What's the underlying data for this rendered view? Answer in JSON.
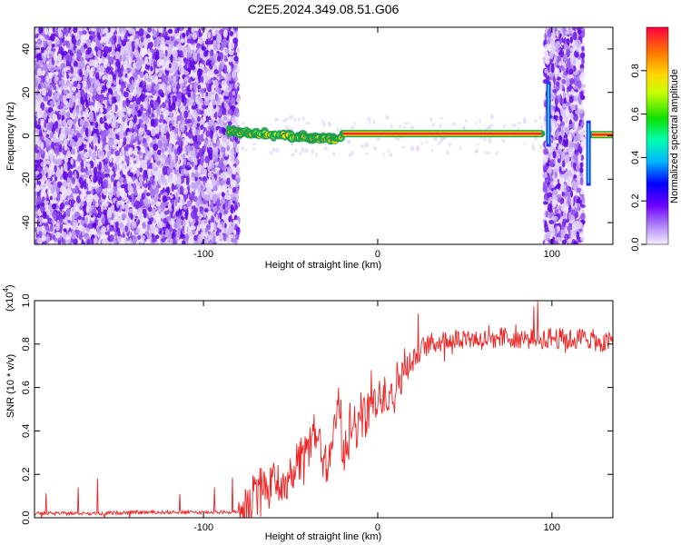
{
  "title": "C2E5.2024.349.08.51.G06",
  "chart_data": [
    {
      "type": "heatmap",
      "xlabel": "Height of straight line (km)",
      "ylabel": "Frequency (Hz)",
      "xlim": [
        -197,
        135
      ],
      "ylim": [
        -50,
        50
      ],
      "xticks": [
        -100,
        0,
        100
      ],
      "yticks": [
        -40,
        -20,
        0,
        20,
        40
      ],
      "colorbar": {
        "label": "Normalized spectral amplitude",
        "range": [
          0,
          1
        ],
        "ticks": [
          "0.0",
          "0.2",
          "0.4",
          "0.6",
          "0.8"
        ]
      },
      "noise_regions_km": [
        [
          -197,
          -80
        ],
        [
          96,
          118
        ]
      ],
      "signal_line_freq_hz": 1,
      "signal_segments": [
        {
          "x": [
            -85,
            -20
          ],
          "freq_hz": [
            2,
            -2
          ],
          "note": "fragmented"
        },
        {
          "x": [
            -20,
            94
          ],
          "freq_hz": [
            1,
            1
          ],
          "note": "continuous"
        },
        {
          "x": [
            123,
            135
          ],
          "freq_hz": [
            0.5,
            0.5
          ],
          "note": "continuous"
        }
      ],
      "vertical_streaks": [
        {
          "x": 98,
          "freq_range": [
            -5,
            25
          ]
        },
        {
          "x": 121,
          "freq_range": [
            -23,
            7
          ]
        }
      ],
      "grid": false
    },
    {
      "type": "line",
      "xlabel": "Height of straight line (km)",
      "ylabel": "SNR (10 * v/v)",
      "y_scale_label": "(x10",
      "y_scale_exponent": "4",
      "xlim": [
        -197,
        135
      ],
      "ylim": [
        0,
        1.0
      ],
      "xticks": [
        -100,
        0,
        100
      ],
      "yticks": [
        "0.0",
        "0.2",
        "0.4",
        "0.6",
        "0.8",
        "1.0"
      ],
      "series": [
        {
          "color": "#ee2222",
          "x": [
            -197,
            -180,
            -160,
            -140,
            -120,
            -100,
            -90,
            -80,
            -75,
            -70,
            -65,
            -60,
            -55,
            -50,
            -45,
            -40,
            -35,
            -30,
            -25,
            -22,
            -20,
            -15,
            -10,
            -5,
            0,
            5,
            10,
            15,
            20,
            25,
            30,
            40,
            50,
            60,
            70,
            80,
            90,
            100,
            110,
            120,
            130,
            135
          ],
          "values": [
            0.02,
            0.02,
            0.02,
            0.025,
            0.025,
            0.025,
            0.025,
            0.03,
            0.05,
            0.1,
            0.15,
            0.18,
            0.12,
            0.16,
            0.25,
            0.3,
            0.42,
            0.25,
            0.38,
            0.55,
            0.3,
            0.4,
            0.45,
            0.5,
            0.55,
            0.58,
            0.6,
            0.68,
            0.72,
            0.78,
            0.8,
            0.82,
            0.83,
            0.82,
            0.83,
            0.83,
            0.82,
            0.83,
            0.82,
            0.83,
            0.8,
            0.82
          ]
        }
      ],
      "grid": false
    }
  ]
}
